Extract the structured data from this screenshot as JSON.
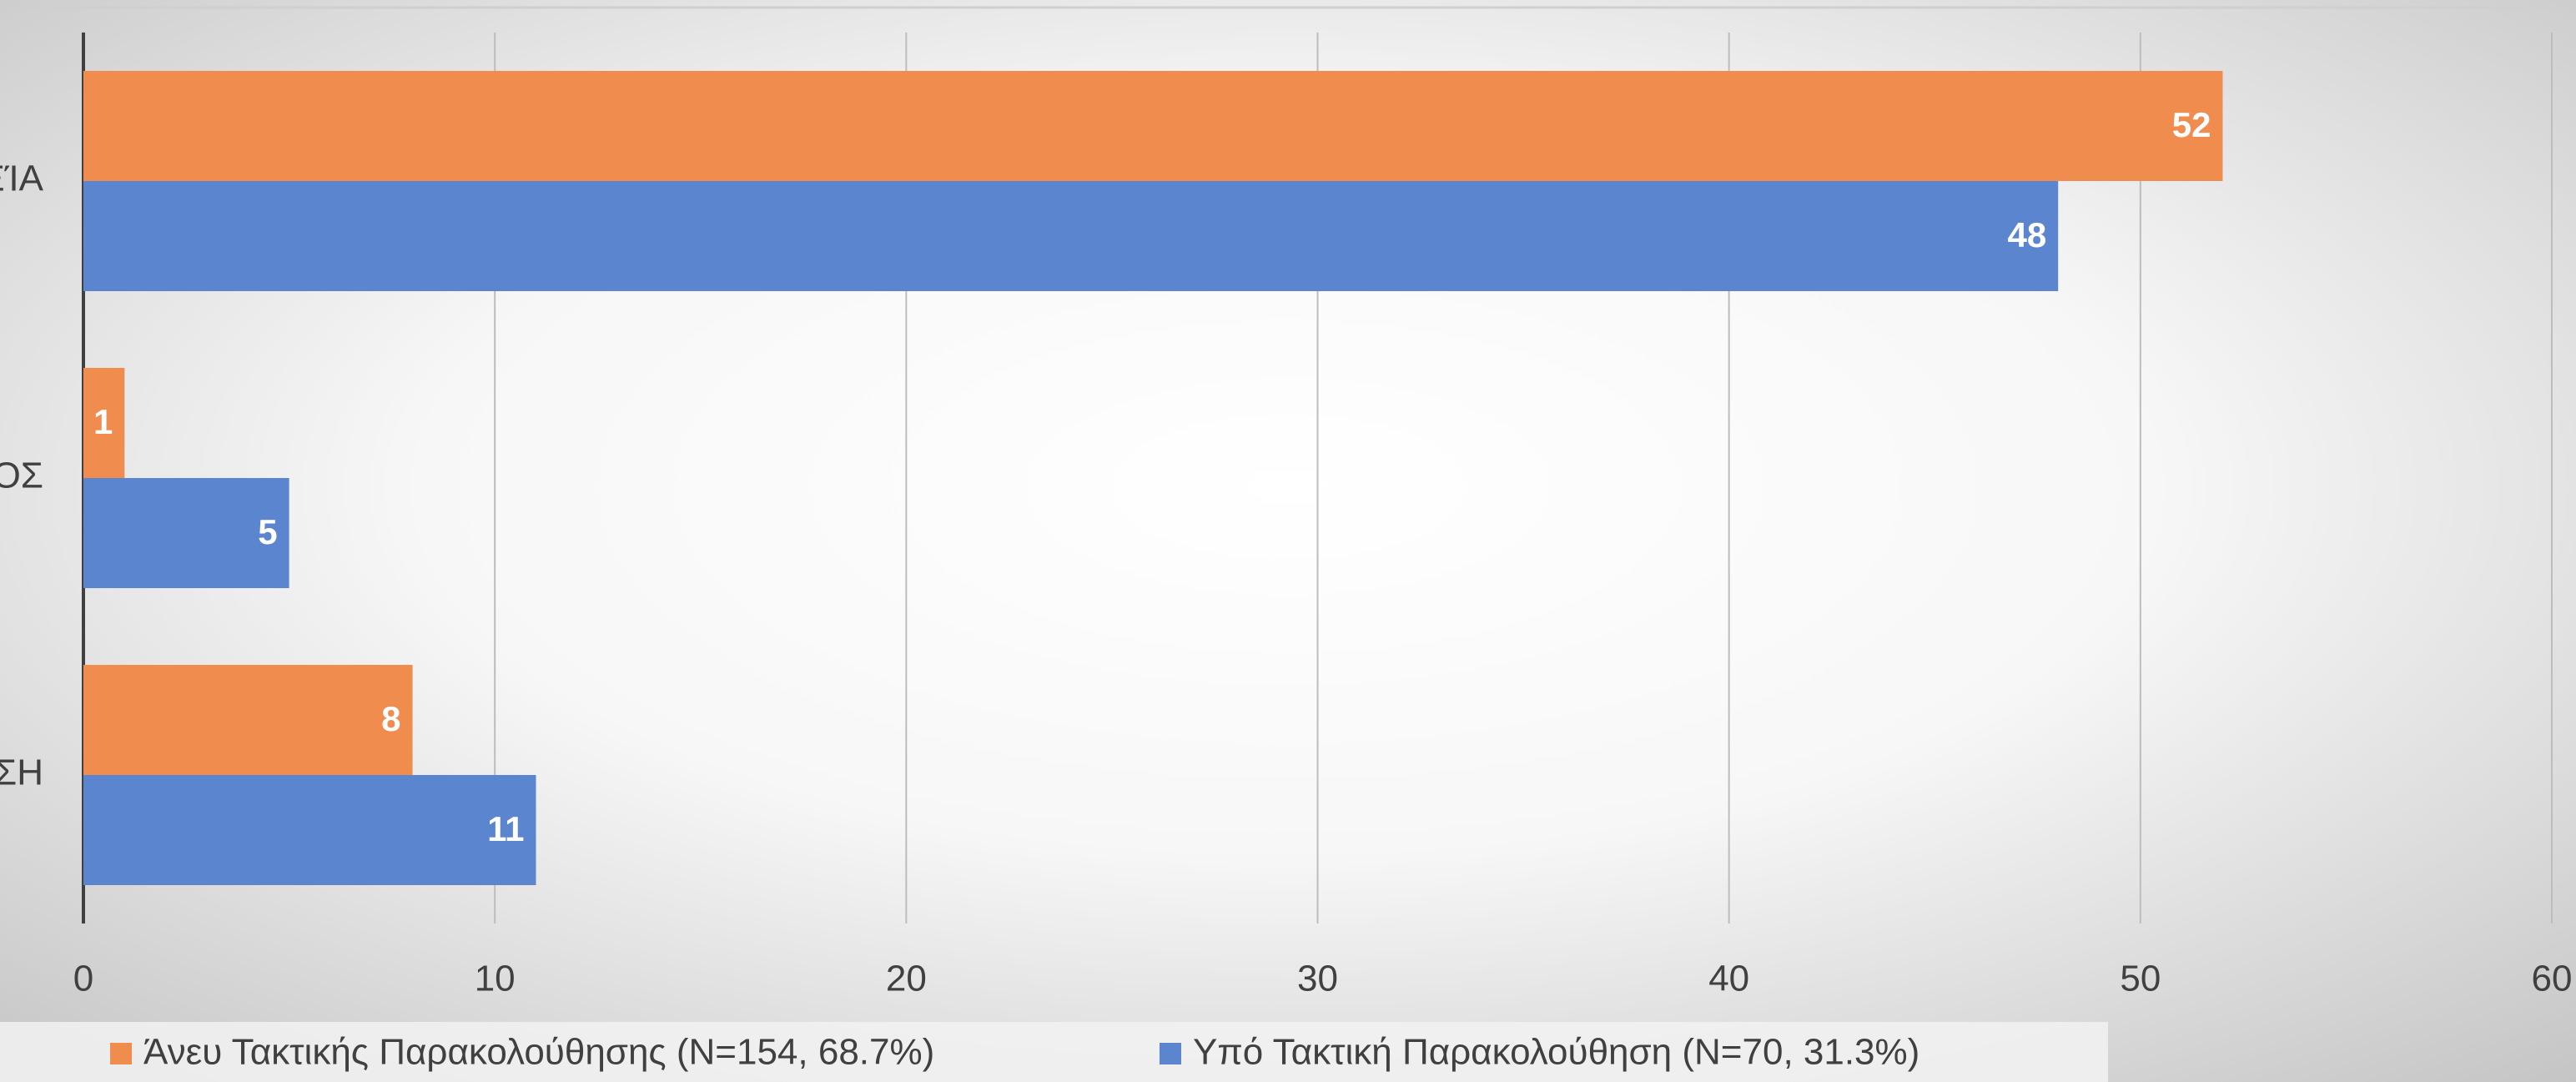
{
  "chart_data": {
    "type": "hbar",
    "categories": [
      "ΞΊΑ",
      "ΟΣ",
      "ΣΗ"
    ],
    "series": [
      {
        "name": "Άνευ Τακτικής Παρακολούθησης (N=154, 68.7%)",
        "color": "#ef8c4e",
        "values": [
          52,
          1,
          8
        ]
      },
      {
        "name": "Υπό Τακτική Παρακολούθηση (N=70, 31.3%)",
        "color": "#5b86cf",
        "values": [
          48,
          5,
          11
        ]
      }
    ],
    "xlim": [
      0,
      60
    ],
    "xticks": [
      0,
      10,
      20,
      30,
      40,
      50,
      60
    ],
    "grid": true,
    "legend": "bottom"
  }
}
